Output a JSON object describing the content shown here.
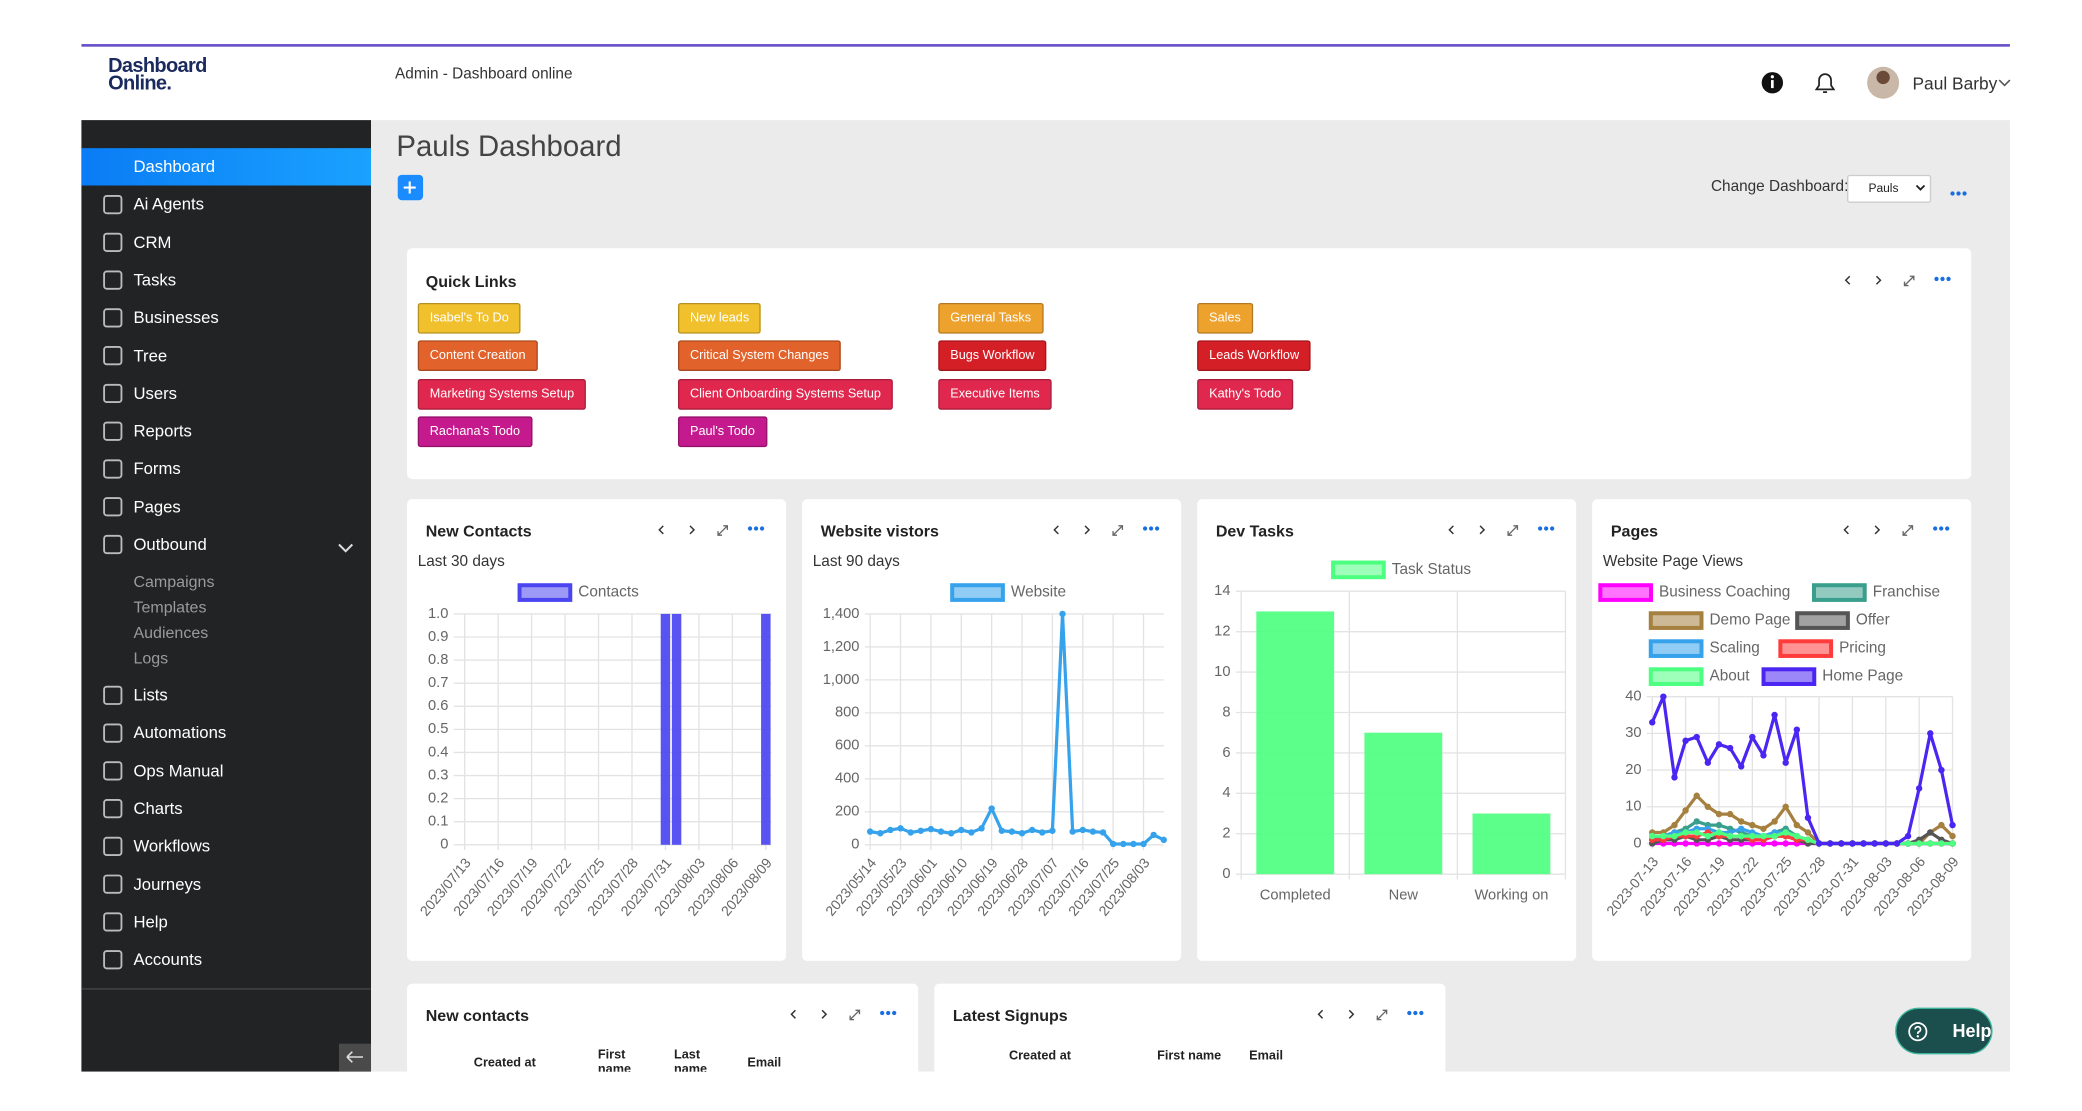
{
  "header": {
    "logo": [
      "Dashboard",
      "Online."
    ],
    "breadcrumb": "Admin - Dashboard online",
    "user": "Paul Barby"
  },
  "sidebar": [
    {
      "label": "Dashboard",
      "active": true
    },
    {
      "label": "Ai Agents"
    },
    {
      "label": "CRM"
    },
    {
      "label": "Tasks"
    },
    {
      "label": "Businesses"
    },
    {
      "label": "Tree"
    },
    {
      "label": "Users"
    },
    {
      "label": "Reports"
    },
    {
      "label": "Forms"
    },
    {
      "label": "Pages"
    },
    {
      "label": "Outbound",
      "children": [
        "Campaigns",
        "Templates",
        "Audiences",
        "Logs"
      ]
    },
    {
      "label": "Lists"
    },
    {
      "label": "Automations"
    },
    {
      "label": "Ops Manual"
    },
    {
      "label": "Charts"
    },
    {
      "label": "Workflows"
    },
    {
      "label": "Journeys"
    },
    {
      "label": "Help"
    },
    {
      "label": "Accounts"
    }
  ],
  "page": {
    "title": "Pauls Dashboard",
    "change_label": "Change Dashboard:",
    "selected": "Pauls"
  },
  "quick_links": {
    "title": "Quick Links",
    "links": [
      {
        "label": "Isabel's To Do",
        "color": "#f0c12c"
      },
      {
        "label": "New leads",
        "color": "#f0c12c"
      },
      {
        "label": "General Tasks",
        "color": "#eea22e"
      },
      {
        "label": "Sales",
        "color": "#eea22e"
      },
      {
        "label": "Content Creation",
        "color": "#e1622a"
      },
      {
        "label": "Critical System Changes",
        "color": "#e1622a"
      },
      {
        "label": "Bugs Workflow",
        "color": "#d51f27"
      },
      {
        "label": "Leads Workflow",
        "color": "#d51f27"
      },
      {
        "label": "Marketing Systems Setup",
        "color": "#e0284f"
      },
      {
        "label": "Client Onboarding Systems Setup",
        "color": "#e0284f"
      },
      {
        "label": "Executive Items",
        "color": "#e0284f"
      },
      {
        "label": "Kathy's Todo",
        "color": "#e0284f"
      },
      {
        "label": "Rachana's Todo",
        "color": "#c41a8e"
      },
      {
        "label": "Paul's Todo",
        "color": "#c41a8e"
      }
    ]
  },
  "chart_data": [
    {
      "type": "bar",
      "title": "New Contacts",
      "subtitle": "Last 30 days",
      "categories": [
        "2023/07/13",
        null,
        null,
        "2023/07/16",
        null,
        null,
        "2023/07/19",
        null,
        null,
        "2023/07/22",
        null,
        null,
        "2023/07/25",
        null,
        null,
        "2023/07/28",
        null,
        null,
        "2023/07/31",
        null,
        null,
        "2023/08/03",
        null,
        null,
        "2023/08/06",
        null,
        null,
        "2023/08/09"
      ],
      "series": [
        {
          "name": "Contacts",
          "color": "#4b45f0",
          "values": [
            0,
            0,
            0,
            0,
            0,
            0,
            0,
            0,
            0,
            0,
            0,
            0,
            0,
            0,
            0,
            0,
            0,
            0,
            1,
            1,
            0,
            0,
            0,
            0,
            0,
            0,
            0,
            1
          ]
        }
      ],
      "ylim": [
        0,
        1
      ],
      "yticks": [
        0,
        0.1,
        0.2,
        0.3,
        0.4,
        0.5,
        0.6,
        0.7,
        0.8,
        0.9,
        {
          "value": 1,
          "label": "1.0"
        }
      ],
      "grid": true
    },
    {
      "type": "line",
      "title": "Website vistors",
      "subtitle": "Last 90 days",
      "categories": [
        "2023/05/14",
        null,
        null,
        "2023/05/23",
        null,
        null,
        "2023/06/01",
        null,
        null,
        "2023/06/10",
        null,
        null,
        "2023/06/19",
        null,
        null,
        "2023/06/28",
        null,
        null,
        "2023/07/07",
        null,
        null,
        "2023/07/16",
        null,
        null,
        "2023/07/25",
        null,
        null,
        "2023/08/03",
        null,
        null
      ],
      "series": [
        {
          "name": "Website",
          "color": "#36a2eb",
          "values": [
            80,
            70,
            90,
            100,
            75,
            85,
            95,
            80,
            70,
            90,
            75,
            100,
            220,
            85,
            80,
            70,
            90,
            75,
            85,
            1400,
            80,
            90,
            80,
            75,
            5,
            5,
            5,
            5,
            60,
            30
          ]
        }
      ],
      "ylim": [
        0,
        1400
      ],
      "yticks": [
        0,
        200,
        400,
        600,
        800,
        {
          "value": 1000,
          "label": "1,000"
        },
        {
          "value": 1200,
          "label": "1,200"
        },
        {
          "value": 1400,
          "label": "1,400"
        }
      ],
      "grid": true
    },
    {
      "type": "bar",
      "title": "Dev Tasks",
      "categories": [
        "Completed",
        "New",
        "Working on"
      ],
      "series": [
        {
          "name": "Task Status",
          "color": "#4dff80",
          "values": [
            13,
            7,
            3
          ]
        }
      ],
      "ylim": [
        0,
        14
      ],
      "yticks": [
        0,
        2,
        4,
        6,
        8,
        10,
        12,
        14
      ],
      "grid": true
    },
    {
      "type": "line",
      "title": "Pages",
      "subtitle": "Website Page Views",
      "categories": [
        "2023-07-13",
        null,
        null,
        "2023-07-16",
        null,
        null,
        "2023-07-19",
        null,
        null,
        "2023-07-22",
        null,
        null,
        "2023-07-25",
        null,
        null,
        "2023-07-28",
        null,
        null,
        "2023-07-31",
        null,
        null,
        "2023-08-03",
        null,
        null,
        "2023-08-06",
        null,
        null,
        "2023-08-09"
      ],
      "series": [
        {
          "name": "Business Coaching",
          "color": "#ff00ff",
          "values": [
            0,
            0,
            0,
            0,
            0,
            0,
            0,
            0,
            0,
            0,
            0,
            0,
            0,
            0,
            0,
            0,
            0,
            0,
            0,
            0,
            0,
            0,
            0,
            0,
            0,
            0,
            0,
            0
          ]
        },
        {
          "name": "Franchise",
          "color": "#3a9e8c",
          "values": [
            1,
            2,
            3,
            4,
            6,
            5,
            5,
            4,
            3,
            2,
            2,
            3,
            4,
            2,
            1,
            0,
            0,
            0,
            0,
            0,
            0,
            0,
            0,
            0,
            0,
            0,
            0,
            0
          ]
        },
        {
          "name": "Demo Page",
          "color": "#a5803f",
          "values": [
            3,
            3,
            5,
            9,
            13,
            10,
            8,
            8,
            6,
            5,
            4,
            6,
            10,
            5,
            3,
            0,
            0,
            0,
            0,
            0,
            0,
            0,
            0,
            0,
            0,
            3,
            5,
            2
          ]
        },
        {
          "name": "Offer",
          "color": "#555555",
          "values": [
            0,
            1,
            1,
            2,
            1,
            1,
            2,
            1,
            1,
            1,
            1,
            2,
            2,
            1,
            0,
            0,
            0,
            0,
            0,
            0,
            0,
            0,
            0,
            0,
            1,
            3,
            1,
            0
          ]
        },
        {
          "name": "Scaling",
          "color": "#36a2eb",
          "values": [
            2,
            2,
            3,
            3,
            4,
            4,
            3,
            3,
            4,
            3,
            2,
            3,
            3,
            2,
            1,
            0,
            0,
            0,
            0,
            0,
            0,
            0,
            0,
            0,
            0,
            0,
            0,
            0
          ]
        },
        {
          "name": "Pricing",
          "color": "#ff3b3b",
          "values": [
            1,
            1,
            2,
            2,
            2,
            3,
            2,
            2,
            2,
            1,
            1,
            2,
            2,
            1,
            1,
            0,
            0,
            0,
            0,
            0,
            0,
            0,
            0,
            0,
            0,
            0,
            0,
            0
          ]
        },
        {
          "name": "About",
          "color": "#4dff80",
          "values": [
            2,
            2,
            2,
            3,
            3,
            2,
            3,
            2,
            2,
            2,
            2,
            2,
            3,
            2,
            1,
            0,
            0,
            0,
            0,
            0,
            0,
            0,
            0,
            0,
            0,
            0,
            0,
            0
          ]
        },
        {
          "name": "Home Page",
          "color": "#4b25f2",
          "values": [
            33,
            40,
            18,
            28,
            29,
            22,
            27,
            26,
            21,
            29,
            24,
            35,
            22,
            31,
            7,
            0,
            0,
            0,
            0,
            0,
            0,
            0,
            0,
            2,
            15,
            30,
            20,
            5
          ]
        }
      ],
      "ylim": [
        0,
        40
      ],
      "yticks": [
        0,
        10,
        20,
        30,
        40
      ],
      "grid": true
    }
  ],
  "tables": [
    {
      "title": "New contacts",
      "columns": [
        "Created at",
        "First name",
        "Last name",
        "Email"
      ]
    },
    {
      "title": "Latest Signups",
      "columns": [
        "Created at",
        "First name",
        "Email"
      ]
    }
  ],
  "help": "Help"
}
